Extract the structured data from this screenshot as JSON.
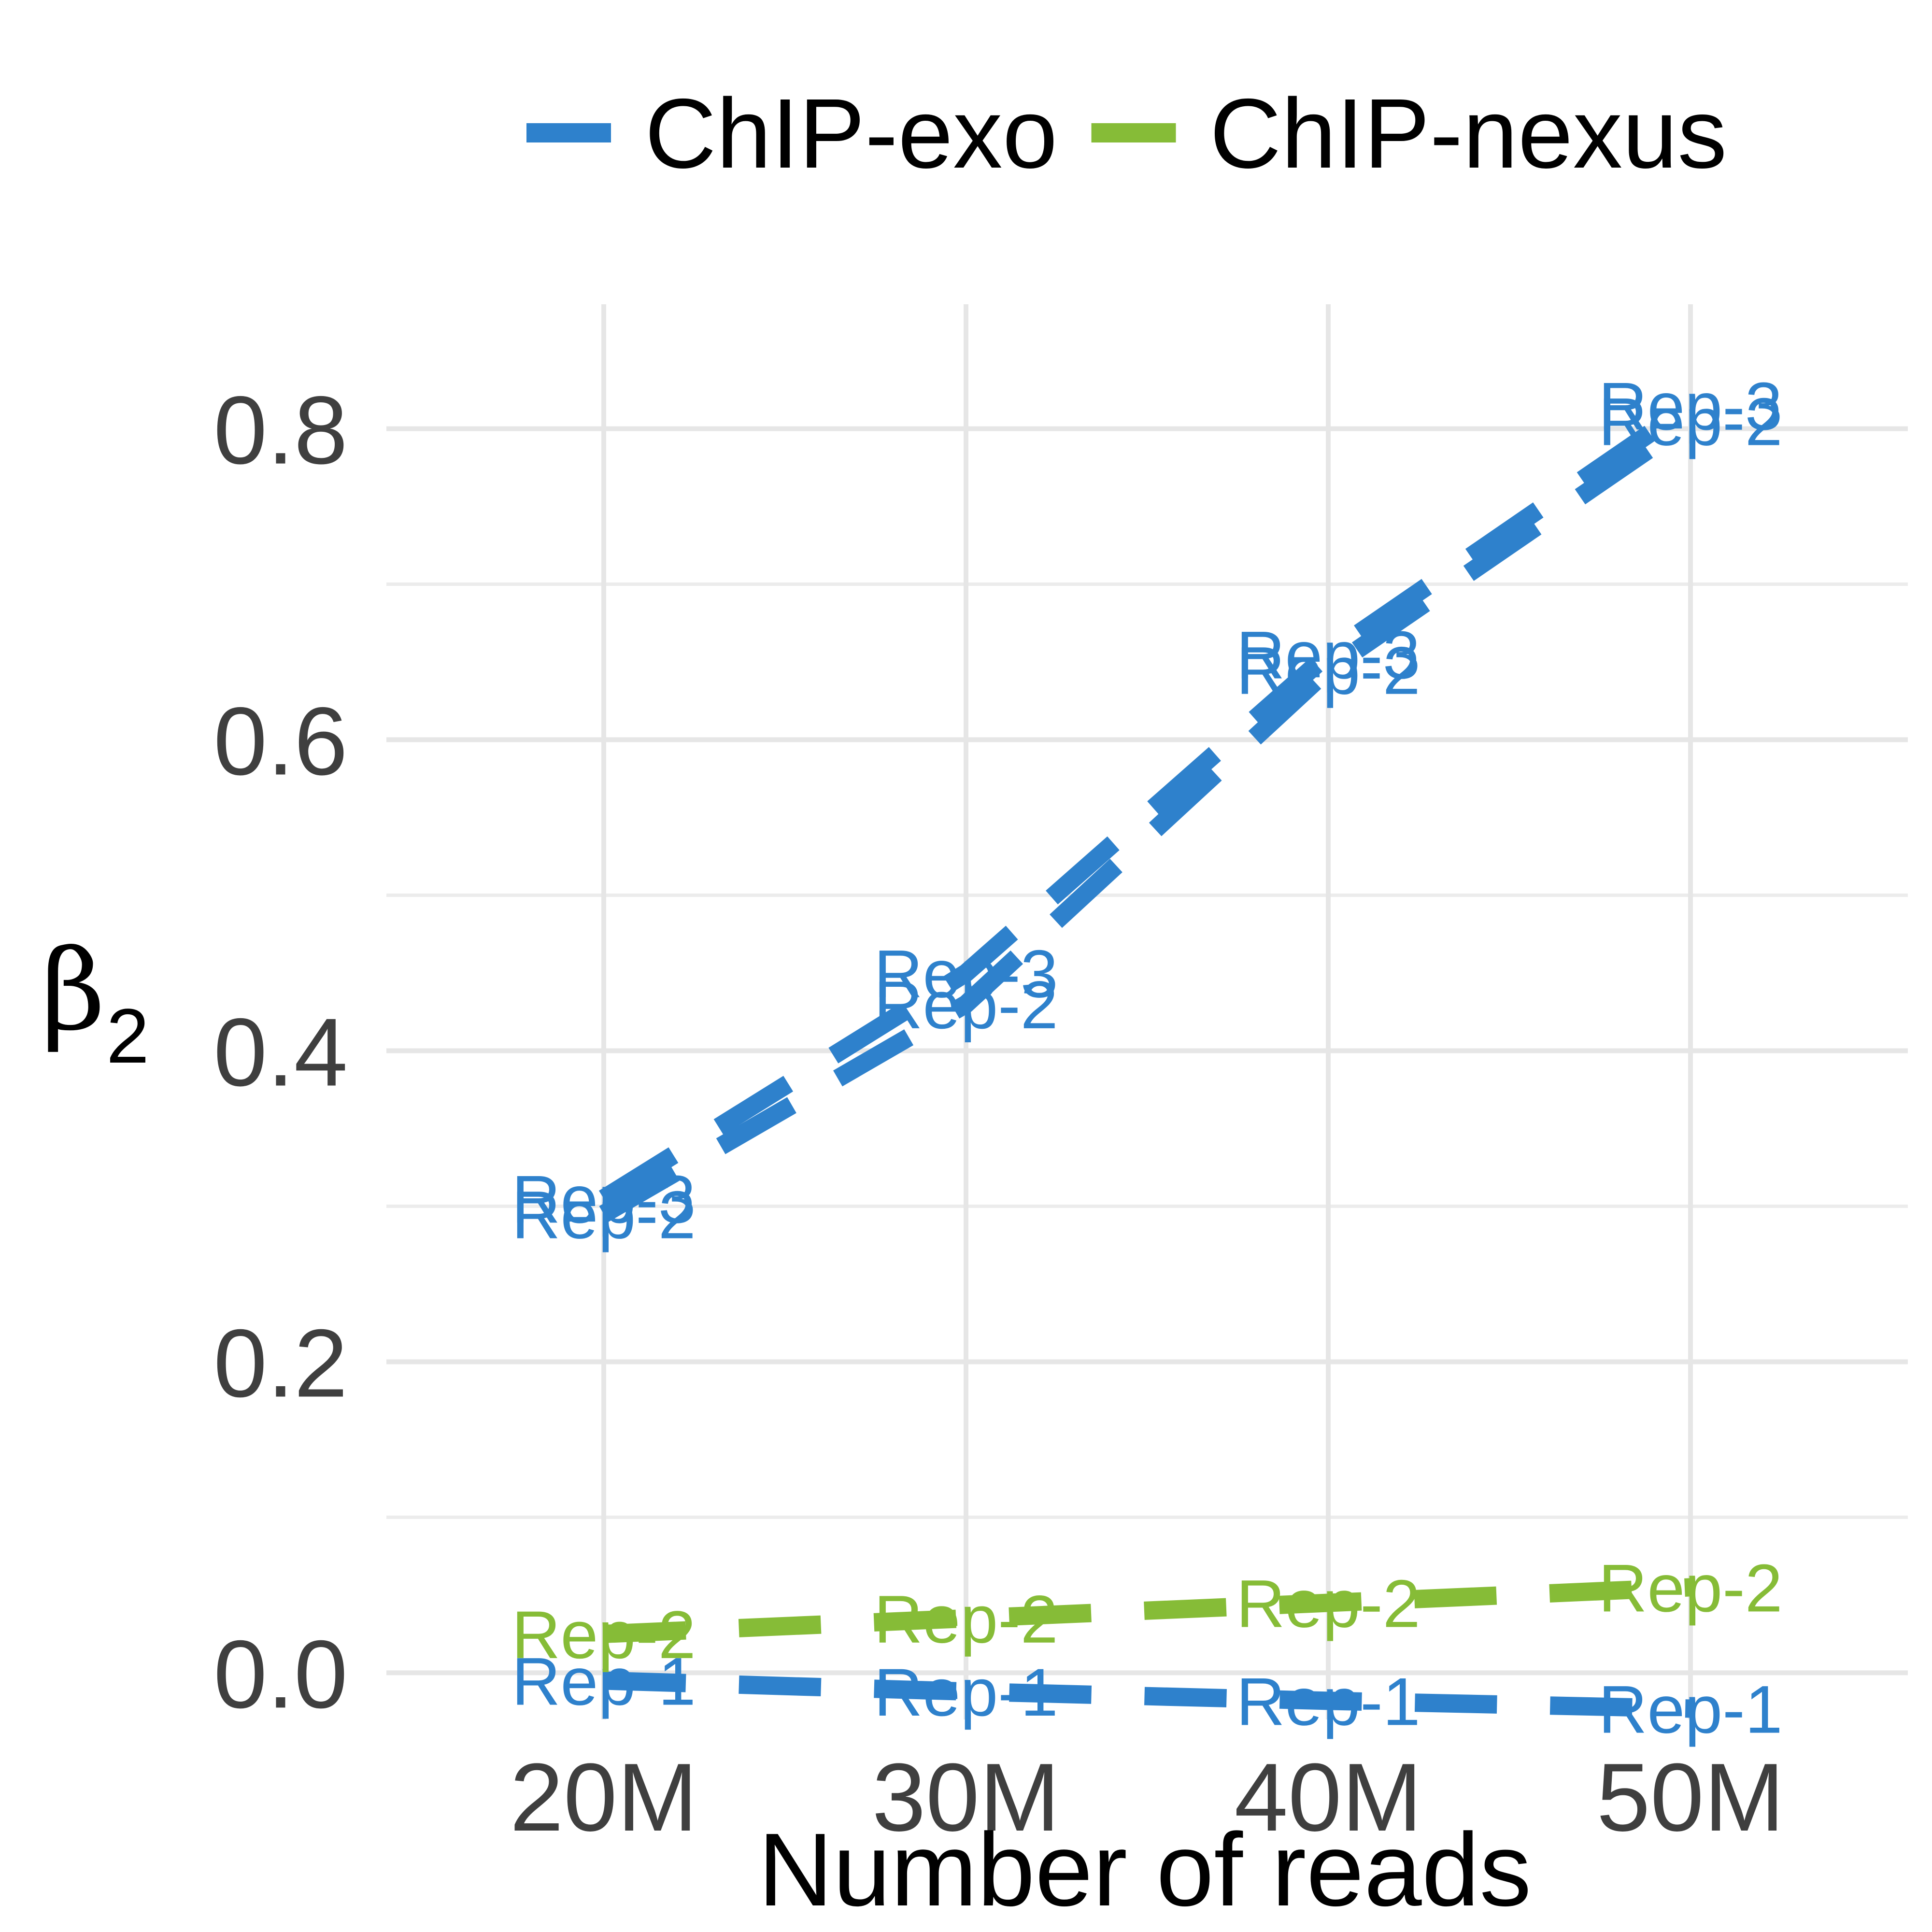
{
  "chart_data": {
    "type": "line",
    "xlabel": "Number of reads",
    "ylabel": {
      "symbol": "β",
      "subscript": "2"
    },
    "x": [
      "20M",
      "30M",
      "40M",
      "50M"
    ],
    "x_values": [
      20,
      30,
      40,
      50
    ],
    "xlim": [
      14,
      56
    ],
    "ylim": [
      -0.03,
      0.88
    ],
    "y_ticks": [
      "0.0",
      "0.2",
      "0.4",
      "0.6",
      "0.8"
    ],
    "y_tick_values": [
      0.0,
      0.2,
      0.4,
      0.6,
      0.8
    ],
    "grid": true,
    "legend_position": "top",
    "legend": [
      {
        "label": "ChIP-exo",
        "color": "#2e81cc"
      },
      {
        "label": "ChIP-nexus",
        "color": "#86bc37"
      }
    ],
    "series": [
      {
        "group": "ChIP-exo",
        "label": "Rep-1",
        "color": "#2e81cc",
        "values": [
          -0.005,
          -0.012,
          -0.018,
          -0.023
        ]
      },
      {
        "group": "ChIP-exo",
        "label": "Rep-2",
        "color": "#2e81cc",
        "values": [
          0.295,
          0.43,
          0.645,
          0.805
        ]
      },
      {
        "group": "ChIP-exo",
        "label": "Rep-3",
        "color": "#2e81cc",
        "values": [
          0.305,
          0.45,
          0.655,
          0.815
        ]
      },
      {
        "group": "ChIP-nexus",
        "label": "Rep-2",
        "color": "#86bc37",
        "values": [
          0.025,
          0.035,
          0.045,
          0.055
        ]
      }
    ]
  }
}
